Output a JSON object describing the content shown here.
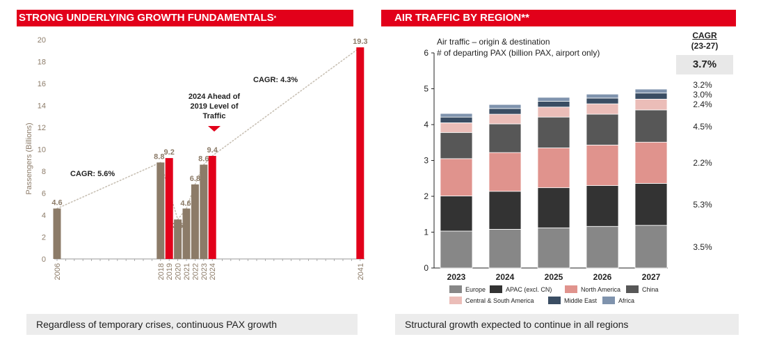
{
  "left": {
    "title": "STRONG UNDERLYING GROWTH FUNDAMENTALS",
    "title_mark": "*",
    "footer": "Regardless of temporary crises, continuous PAX growth",
    "annotations": {
      "ahead": [
        "2024 Ahead of",
        "2019 Level of",
        "Traffic"
      ],
      "cagr1": "CAGR: 5.6%",
      "cagr2": "CAGR: 4.3%"
    }
  },
  "right": {
    "title": "AIR TRAFFIC BY REGION**",
    "footer": "Structural growth expected to continue in all regions",
    "chart_title": [
      "Air traffic – origin & destination",
      "# of departing PAX (billion PAX, airport only)"
    ],
    "cagr": {
      "header": "CAGR",
      "period": "(23-27)",
      "total": "3.7%",
      "by_series": [
        "3.2%",
        "3.0%",
        "2.4%",
        "4.5%",
        "2.2%",
        "5.3%",
        "3.5%"
      ]
    }
  },
  "colors": {
    "brand_red": "#e2001a",
    "bar_brown": "#8c7b68",
    "Europe": "#878787",
    "APAC (excl. CN)": "#333333",
    "North America": "#e0938d",
    "China": "#575757",
    "Central & South America": "#ebbdb8",
    "Middle East": "#3a4d63",
    "Africa": "#7f93ad"
  },
  "chart_data": [
    {
      "type": "bar",
      "ylabel": "Passengers (Billions)",
      "ylim": [
        0,
        20
      ],
      "yticks": [
        0,
        2,
        4,
        6,
        8,
        10,
        12,
        14,
        16,
        18,
        20
      ],
      "x_range": [
        2006,
        2041
      ],
      "bars": [
        {
          "year": 2006,
          "value": 4.6,
          "label": "4.6",
          "highlight": false
        },
        {
          "year": 2018,
          "value": 8.8,
          "label": "8.8",
          "highlight": false
        },
        {
          "year": 2019,
          "value": 9.2,
          "label": "9.2",
          "highlight": true
        },
        {
          "year": 2020,
          "value": 3.6,
          "label": "3.6",
          "highlight": false
        },
        {
          "year": 2021,
          "value": 4.6,
          "label": "4.6",
          "highlight": false
        },
        {
          "year": 2022,
          "value": 6.8,
          "label": "6.8",
          "highlight": false
        },
        {
          "year": 2023,
          "value": 8.6,
          "label": "8.6",
          "highlight": false
        },
        {
          "year": 2024,
          "value": 9.4,
          "label": "9.4",
          "highlight": true
        },
        {
          "year": 2041,
          "value": 19.3,
          "label": "19.3",
          "highlight": true
        }
      ]
    },
    {
      "type": "bar",
      "stacked": true,
      "categories": [
        "2023",
        "2024",
        "2025",
        "2026",
        "2027"
      ],
      "ylim": [
        0,
        6
      ],
      "yticks": [
        0,
        1,
        2,
        3,
        4,
        5,
        6
      ],
      "legend_placement": "bottom",
      "series": [
        {
          "name": "Europe",
          "values": [
            1.03,
            1.08,
            1.12,
            1.16,
            1.19
          ]
        },
        {
          "name": "APAC (excl. CN)",
          "values": [
            0.98,
            1.06,
            1.12,
            1.14,
            1.17
          ]
        },
        {
          "name": "North America",
          "values": [
            1.04,
            1.08,
            1.11,
            1.13,
            1.15
          ]
        },
        {
          "name": "China",
          "values": [
            0.73,
            0.8,
            0.86,
            0.86,
            0.9
          ]
        },
        {
          "name": "Central & South America",
          "values": [
            0.27,
            0.27,
            0.28,
            0.29,
            0.3
          ]
        },
        {
          "name": "Middle East",
          "values": [
            0.16,
            0.16,
            0.16,
            0.16,
            0.17
          ]
        },
        {
          "name": "Africa",
          "values": [
            0.1,
            0.11,
            0.11,
            0.11,
            0.11
          ]
        }
      ]
    }
  ]
}
